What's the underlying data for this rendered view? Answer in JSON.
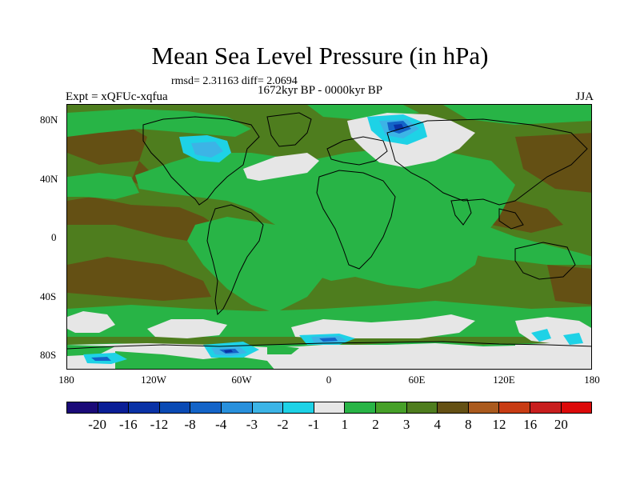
{
  "header": {
    "title": "Mean Sea Level Pressure (in hPa)",
    "stats": "rmsd= 2.31163 diff= 2.0694",
    "period": "1672kyr BP - 0000kyr BP",
    "experiment": "Expt = xQFUc-xqfua",
    "season": "JJA"
  },
  "axes": {
    "y_labels": [
      "80N",
      "40N",
      "0",
      "40S",
      "80S"
    ],
    "x_labels": [
      "180",
      "120W",
      "60W",
      "0",
      "60E",
      "120E",
      "180"
    ]
  },
  "colorbar": {
    "labels": [
      "-20",
      "-16",
      "-12",
      "-8",
      "-4",
      "-3",
      "-2",
      "-1",
      "1",
      "2",
      "3",
      "4",
      "8",
      "12",
      "16",
      "20"
    ],
    "colors": [
      "#1a0a78",
      "#0a1e96",
      "#0a32a6",
      "#0a4ab4",
      "#1464c8",
      "#2890dc",
      "#3cb4e6",
      "#1ed2e6",
      "#e6e6e6",
      "#28b446",
      "#46a028",
      "#4e7d1e",
      "#645014",
      "#aa5a1e",
      "#c83c14",
      "#c81e1e",
      "#dc0a0a"
    ]
  },
  "map": {
    "background_color": "#4e7d1e",
    "colors": {
      "green": "#28b446",
      "olive": "#4e7d1e",
      "brown": "#645014",
      "white": "#e6e6e6",
      "cyan": "#1ed2e6",
      "lightblue": "#3cb4e6",
      "blue": "#1464c8",
      "darkblue": "#0a32a6",
      "coast": "#000000"
    }
  }
}
